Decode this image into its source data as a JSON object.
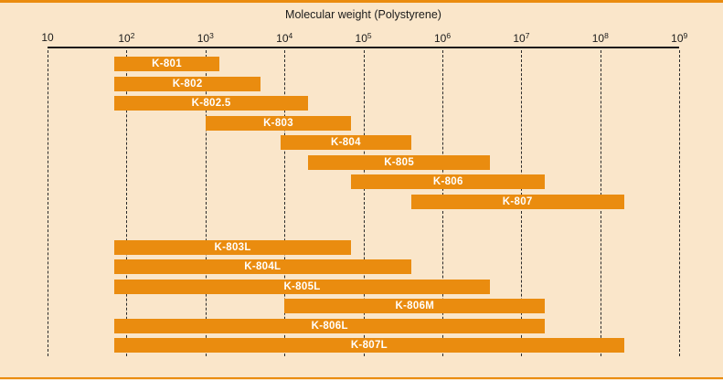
{
  "colors": {
    "background": "#fae6ca",
    "bar_orange": "#ea8c0f",
    "border_rule_orange": "#ea8c0f",
    "ink": "#1b1b1b"
  },
  "chart_data": {
    "type": "bar",
    "orientation": "horizontal-range",
    "title": "Molecular weight (Polystyrene)",
    "xlabel": "Molecular weight (Polystyrene)",
    "x_scale": "log10",
    "xlim": [
      10,
      1000000000
    ],
    "grid": "vertical-dashed-at-decades",
    "x_ticks": [
      {
        "base": "10",
        "exp": ""
      },
      {
        "base": "10",
        "exp": "2"
      },
      {
        "base": "10",
        "exp": "3"
      },
      {
        "base": "10",
        "exp": "4"
      },
      {
        "base": "10",
        "exp": "5"
      },
      {
        "base": "10",
        "exp": "6"
      },
      {
        "base": "10",
        "exp": "7"
      },
      {
        "base": "10",
        "exp": "8"
      },
      {
        "base": "10",
        "exp": "9"
      }
    ],
    "series": [
      {
        "name": "K-801",
        "group": "standard",
        "mw_min": 70,
        "mw_max": 1500
      },
      {
        "name": "K-802",
        "group": "standard",
        "mw_min": 70,
        "mw_max": 5000
      },
      {
        "name": "K-802.5",
        "group": "standard",
        "mw_min": 70,
        "mw_max": 20000
      },
      {
        "name": "K-803",
        "group": "standard",
        "mw_min": 1000,
        "mw_max": 70000
      },
      {
        "name": "K-804",
        "group": "standard",
        "mw_min": 9000,
        "mw_max": 400000
      },
      {
        "name": "K-805",
        "group": "standard",
        "mw_min": 20000,
        "mw_max": 4000000
      },
      {
        "name": "K-806",
        "group": "standard",
        "mw_min": 70000,
        "mw_max": 20000000
      },
      {
        "name": "K-807",
        "group": "standard",
        "mw_min": 400000,
        "mw_max": 200000000
      },
      {
        "name": "K-803L",
        "group": "linear",
        "mw_min": 70,
        "mw_max": 70000
      },
      {
        "name": "K-804L",
        "group": "linear",
        "mw_min": 70,
        "mw_max": 400000
      },
      {
        "name": "K-805L",
        "group": "linear",
        "mw_min": 70,
        "mw_max": 4000000
      },
      {
        "name": "K-806M",
        "group": "linear",
        "mw_min": 10000,
        "mw_max": 20000000
      },
      {
        "name": "K-806L",
        "group": "linear",
        "mw_min": 70,
        "mw_max": 20000000
      },
      {
        "name": "K-807L",
        "group": "linear",
        "mw_min": 70,
        "mw_max": 200000000
      }
    ]
  }
}
